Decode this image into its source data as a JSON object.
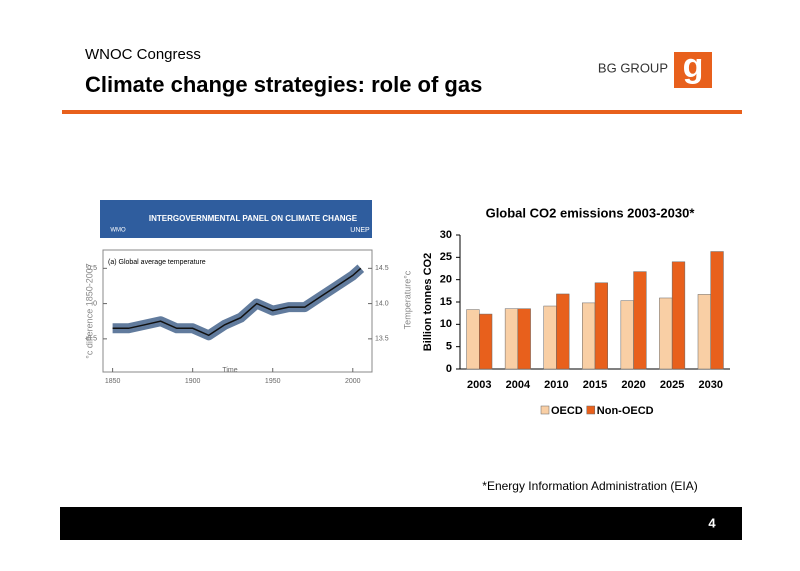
{
  "header": {
    "event": "WNOC Congress",
    "title": "Climate change strategies: role of gas"
  },
  "logo": {
    "text": "BG GROUP",
    "mark": "g"
  },
  "chart_data": [
    {
      "type": "line",
      "banner": {
        "title": "INTERGOVERNMENTAL PANEL ON CLIMATE CHANGE",
        "left": "WMO",
        "right": "UNEP"
      },
      "subtitle": "(a) Global average temperature",
      "x_label": "Time",
      "y_label": "°c difference 1850-2007",
      "y2_label": "Temperature°c",
      "x": [
        1850,
        1860,
        1870,
        1880,
        1890,
        1900,
        1910,
        1920,
        1930,
        1940,
        1950,
        1960,
        1970,
        1980,
        1990,
        2000,
        2005
      ],
      "series": [
        {
          "name": "Global average temperature",
          "color": "#2c4f7c",
          "values": [
            -0.35,
            -0.35,
            -0.3,
            -0.25,
            -0.35,
            -0.35,
            -0.45,
            -0.3,
            -0.2,
            0.0,
            -0.1,
            -0.05,
            -0.05,
            0.1,
            0.25,
            0.4,
            0.5
          ]
        }
      ],
      "xlim": [
        1844,
        2012
      ],
      "xticks": [
        1850,
        1900,
        1950,
        2000
      ],
      "ylim": [
        -0.97,
        0.76
      ],
      "yticks": [
        -0.5,
        0,
        0.5
      ],
      "y2lim": [
        13.03,
        14.76
      ],
      "y2ticks": [
        {
          "value": 13.5,
          "label": "13.5"
        },
        {
          "value": 14,
          "label": "14.0"
        },
        {
          "value": 14.5,
          "label": "14.5"
        }
      ]
    },
    {
      "type": "bar",
      "title": "Global CO2 emissions 2003-2030*",
      "y_label": "Billion tonnes CO2",
      "categories": [
        "2003",
        "2004",
        "2010",
        "2015",
        "2020",
        "2025",
        "2030"
      ],
      "series": [
        {
          "name": "OECD",
          "color": "#f9cfa5",
          "values": [
            13.3,
            13.5,
            14.1,
            14.8,
            15.3,
            15.9,
            16.7
          ]
        },
        {
          "name": "Non-OECD",
          "color": "#e8601c",
          "values": [
            12.3,
            13.5,
            16.8,
            19.3,
            21.8,
            24.0,
            26.3
          ]
        }
      ],
      "ylim": [
        0,
        30
      ],
      "yticks": [
        0,
        5,
        10,
        15,
        20,
        25,
        30
      ]
    }
  ],
  "footnote": "*Energy Information Administration (EIA)",
  "page_number": "4"
}
